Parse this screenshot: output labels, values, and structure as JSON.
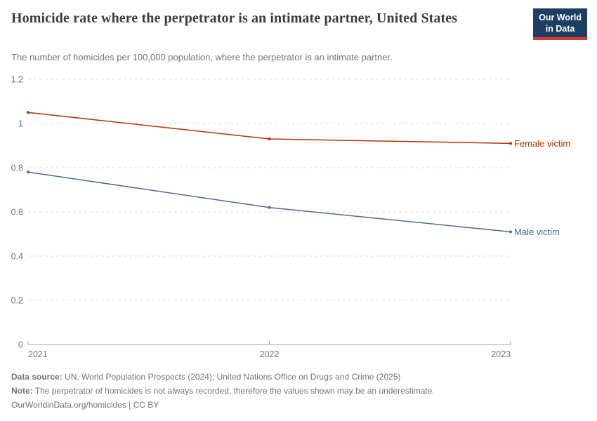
{
  "header": {
    "logo": {
      "line1": "Our World",
      "line2": "in Data",
      "bg_color": "#1d3d63",
      "accent_color": "#d73a34"
    }
  },
  "chart_data": {
    "type": "line",
    "title": "Homicide rate where the perpetrator is an intimate partner, United States",
    "subtitle": "The number of homicides per 100,000 population, where the perpetrator is an intimate partner.",
    "x": [
      2021,
      2022,
      2023
    ],
    "xticks": [
      2021,
      2022,
      2023
    ],
    "ylim": [
      0,
      1.2
    ],
    "yticks": [
      0,
      0.2,
      0.4,
      0.6,
      0.8,
      1,
      1.2
    ],
    "grid": "horizontal-dashed",
    "legend_position": "end-of-line-labels",
    "series": [
      {
        "name": "Female victim",
        "color": "#b13507",
        "values": [
          1.05,
          0.93,
          0.91
        ]
      },
      {
        "name": "Male victim",
        "color": "#4c6a9c",
        "values": [
          0.78,
          0.62,
          0.51
        ]
      }
    ]
  },
  "footer": {
    "data_source_label": "Data source:",
    "data_source": " UN, World Population Prospects (2024); United Nations Office on Drugs and Crime (2025)",
    "note_label": "Note:",
    "note": " The perpetrator of homicides is not always recorded, therefore the values shown may be an underestimate.",
    "attribution": "OurWorldinData.org/homicides | CC BY"
  }
}
